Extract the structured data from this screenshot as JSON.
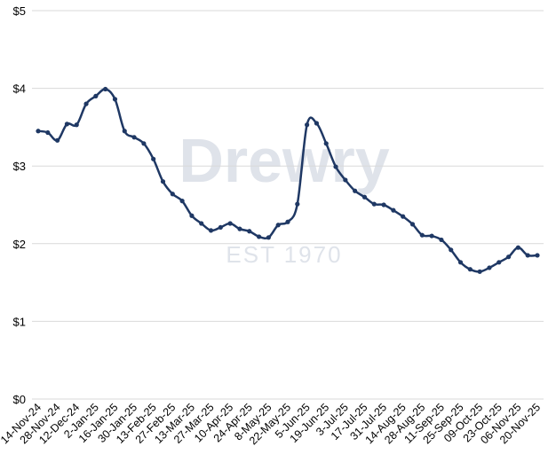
{
  "chart_data": {
    "type": "line",
    "watermark": {
      "name": "Drewry",
      "est": "EST 1970"
    },
    "categories": [
      "14-Nov-24",
      null,
      "28-Nov-24",
      null,
      "12-Dec-24",
      null,
      "2-Jan-25",
      null,
      "16-Jan-25",
      null,
      "30-Jan-25",
      null,
      "13-Feb-25",
      null,
      "27-Feb-25",
      null,
      "13-Mar-25",
      null,
      "27-Mar-25",
      null,
      "10-Apr-25",
      null,
      "24-Apr-25",
      null,
      "8-May-25",
      null,
      "22-May-25",
      null,
      "5-Jun-25",
      null,
      "19-Jun-25",
      null,
      "3-Jul-25",
      null,
      "17-Jul-25",
      null,
      "31-Jul-25",
      null,
      "14-Aug-25",
      null,
      "28-Aug-25",
      null,
      "11-Sep-25",
      null,
      "25-Sep-25",
      null,
      "09-Oct-25",
      null,
      "23-Oct-25",
      null,
      "06-Nov-25",
      null,
      "20-Nov-25"
    ],
    "values": [
      3.45,
      3.43,
      3.33,
      3.54,
      3.53,
      3.8,
      3.9,
      3.99,
      3.86,
      3.45,
      3.37,
      3.29,
      3.09,
      2.8,
      2.64,
      2.55,
      2.36,
      2.26,
      2.17,
      2.21,
      2.26,
      2.19,
      2.16,
      2.09,
      2.08,
      2.24,
      2.28,
      2.51,
      3.53,
      3.55,
      3.29,
      2.99,
      2.82,
      2.68,
      2.6,
      2.51,
      2.5,
      2.43,
      2.35,
      2.25,
      2.11,
      2.1,
      2.05,
      1.92,
      1.76,
      1.67,
      1.64,
      1.69,
      1.76,
      1.83,
      1.95,
      1.85,
      1.85
    ],
    "color": "#1f3864",
    "ylim": [
      0,
      5
    ],
    "yticks": [
      {
        "value": 0,
        "label": "$0"
      },
      {
        "value": 1,
        "label": "$1"
      },
      {
        "value": 2,
        "label": "$2"
      },
      {
        "value": 3,
        "label": "$3"
      },
      {
        "value": 4,
        "label": "$4"
      },
      {
        "value": 5,
        "label": "$5"
      }
    ],
    "grid": true
  }
}
